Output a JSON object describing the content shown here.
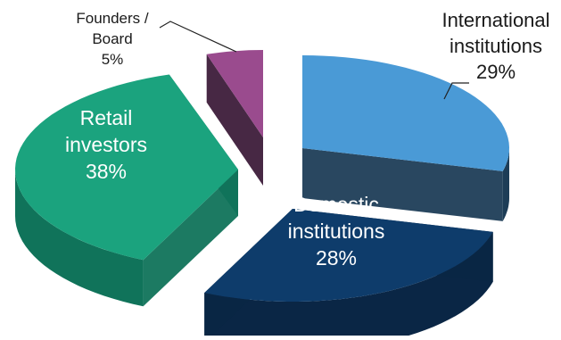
{
  "chart_data": {
    "type": "pie",
    "title": "",
    "style": "3d-exploded",
    "slices": [
      {
        "key": "intl",
        "lines": [
          "International",
          "institutions",
          "29%"
        ],
        "value": 29,
        "color": "#4a9ad6",
        "side_color": "#1d3d57",
        "label_color": "#1a1a1a"
      },
      {
        "key": "domestic",
        "lines": [
          "Domestic",
          "institutions",
          "28%"
        ],
        "value": 28,
        "color": "#0e3c6b",
        "side_color": "#0a2645",
        "label_color": "#ffffff"
      },
      {
        "key": "retail",
        "lines": [
          "Retail",
          "investors",
          "38%"
        ],
        "value": 38,
        "color": "#1ba37e",
        "side_color": "#10735a",
        "label_color": "#ffffff"
      },
      {
        "key": "founders",
        "lines": [
          "Founders /",
          "Board",
          "5%"
        ],
        "value": 5,
        "color": "#9a4b8e",
        "side_color": "#3d1c3a",
        "label_color": "#1a1a1a"
      }
    ]
  }
}
